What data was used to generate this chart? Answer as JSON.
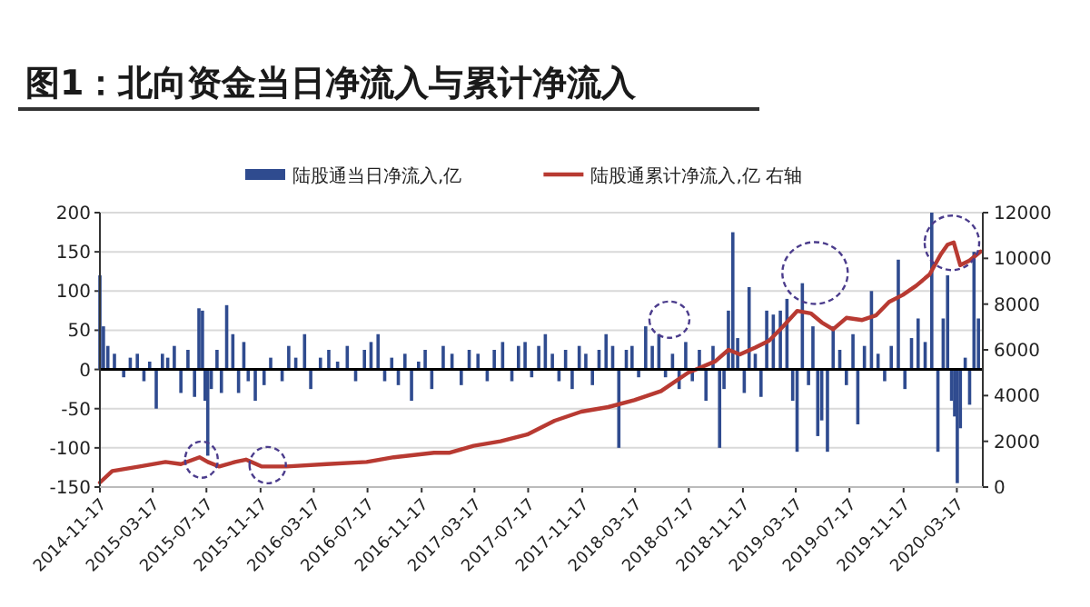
{
  "chart_data": {
    "type": "bar",
    "title": "图1：北向资金当日净流入与累计净流入",
    "xlim": [
      "2014-11-17",
      "2020-05-15"
    ],
    "xticks": [
      "2014-11-17",
      "2015-03-17",
      "2015-07-17",
      "2015-11-17",
      "2016-03-17",
      "2016-07-17",
      "2016-11-17",
      "2017-03-17",
      "2017-07-17",
      "2017-11-17",
      "2018-03-17",
      "2018-07-17",
      "2018-11-17",
      "2019-03-17",
      "2019-07-17",
      "2019-11-17",
      "2020-03-17"
    ],
    "ylim": [
      -150,
      200
    ],
    "yticks": [
      -150,
      -100,
      -50,
      0,
      50,
      100,
      150,
      200
    ],
    "y2lim": [
      0,
      12000
    ],
    "y2ticks": [
      0,
      2000,
      4000,
      6000,
      8000,
      10000,
      12000
    ],
    "grid": "y",
    "legend": "top",
    "series": [
      {
        "name": "陆股通当日净流入,亿",
        "color": "#2f4b8f",
        "x": [
          "2014-11-17",
          "2014-11-25",
          "2014-12-05",
          "2014-12-20",
          "2015-01-10",
          "2015-01-25",
          "2015-02-10",
          "2015-02-25",
          "2015-03-10",
          "2015-03-25",
          "2015-04-08",
          "2015-04-20",
          "2015-05-05",
          "2015-05-20",
          "2015-06-05",
          "2015-06-20",
          "2015-06-30",
          "2015-07-08",
          "2015-07-14",
          "2015-07-20",
          "2015-07-28",
          "2015-08-10",
          "2015-08-20",
          "2015-09-01",
          "2015-09-15",
          "2015-09-28",
          "2015-10-10",
          "2015-10-20",
          "2015-11-05",
          "2015-11-25",
          "2015-12-10",
          "2016-01-05",
          "2016-01-20",
          "2016-02-05",
          "2016-02-25",
          "2016-03-10",
          "2016-04-01",
          "2016-04-20",
          "2016-05-10",
          "2016-06-01",
          "2016-06-20",
          "2016-07-10",
          "2016-07-25",
          "2016-08-10",
          "2016-08-25",
          "2016-09-10",
          "2016-09-25",
          "2016-10-10",
          "2016-10-25",
          "2016-11-10",
          "2016-11-25",
          "2016-12-10",
          "2017-01-05",
          "2017-01-25",
          "2017-02-15",
          "2017-03-05",
          "2017-03-25",
          "2017-04-15",
          "2017-05-01",
          "2017-05-20",
          "2017-06-10",
          "2017-06-25",
          "2017-07-10",
          "2017-07-25",
          "2017-08-10",
          "2017-08-25",
          "2017-09-10",
          "2017-09-25",
          "2017-10-10",
          "2017-10-25",
          "2017-11-10",
          "2017-11-25",
          "2017-12-10",
          "2017-12-25",
          "2018-01-10",
          "2018-01-25",
          "2018-02-08",
          "2018-02-25",
          "2018-03-10",
          "2018-03-25",
          "2018-04-10",
          "2018-04-25",
          "2018-05-10",
          "2018-05-25",
          "2018-06-10",
          "2018-06-25",
          "2018-07-10",
          "2018-07-25",
          "2018-08-10",
          "2018-08-25",
          "2018-09-10",
          "2018-09-25",
          "2018-10-05",
          "2018-10-15",
          "2018-10-25",
          "2018-11-05",
          "2018-11-20",
          "2018-12-01",
          "2018-12-15",
          "2018-12-28",
          "2019-01-10",
          "2019-01-25",
          "2019-02-10",
          "2019-02-25",
          "2019-03-10",
          "2019-03-20",
          "2019-04-01",
          "2019-04-15",
          "2019-04-25",
          "2019-05-06",
          "2019-05-15",
          "2019-05-28",
          "2019-06-10",
          "2019-06-25",
          "2019-07-10",
          "2019-07-25",
          "2019-08-05",
          "2019-08-20",
          "2019-09-05",
          "2019-09-20",
          "2019-10-05",
          "2019-10-20",
          "2019-11-05",
          "2019-11-20",
          "2019-12-05",
          "2019-12-20",
          "2020-01-05",
          "2020-01-20",
          "2020-02-03",
          "2020-02-15",
          "2020-02-25",
          "2020-03-05",
          "2020-03-12",
          "2020-03-18",
          "2020-03-25",
          "2020-04-05",
          "2020-04-15",
          "2020-04-25",
          "2020-05-05"
        ],
        "values": [
          120,
          55,
          30,
          20,
          -10,
          15,
          20,
          -15,
          10,
          -50,
          20,
          15,
          30,
          -30,
          25,
          -35,
          78,
          75,
          -40,
          -110,
          -25,
          25,
          -30,
          82,
          45,
          -30,
          35,
          -15,
          -40,
          -20,
          15,
          -15,
          30,
          15,
          45,
          -25,
          15,
          25,
          10,
          30,
          -15,
          25,
          35,
          45,
          -15,
          15,
          -20,
          20,
          -40,
          10,
          25,
          -25,
          30,
          20,
          -20,
          25,
          20,
          -15,
          25,
          35,
          -15,
          30,
          35,
          -10,
          30,
          45,
          20,
          -15,
          25,
          -25,
          30,
          20,
          -20,
          25,
          45,
          30,
          -100,
          25,
          30,
          -10,
          55,
          30,
          45,
          -10,
          20,
          -25,
          35,
          -15,
          25,
          -40,
          30,
          -100,
          -25,
          75,
          175,
          40,
          -30,
          105,
          20,
          -35,
          75,
          70,
          75,
          90,
          -40,
          -105,
          110,
          -20,
          55,
          -85,
          -65,
          -105,
          55,
          25,
          -20,
          45,
          -70,
          30,
          100,
          20,
          -15,
          30,
          140,
          -25,
          40,
          65,
          35,
          200,
          -105,
          65,
          120,
          -40,
          -60,
          -145,
          -75,
          15,
          -45,
          150,
          65
        ]
      },
      {
        "name": "陆股通累计净流入,亿 右轴",
        "type": "line",
        "axis": "y2",
        "color": "#b83a32",
        "x": [
          "2014-11-17",
          "2014-12-15",
          "2015-02-15",
          "2015-04-15",
          "2015-05-20",
          "2015-07-01",
          "2015-07-20",
          "2015-08-15",
          "2015-09-20",
          "2015-10-15",
          "2015-11-20",
          "2016-01-15",
          "2016-04-15",
          "2016-07-15",
          "2016-09-15",
          "2016-12-15",
          "2017-01-20",
          "2017-03-15",
          "2017-05-15",
          "2017-07-15",
          "2017-09-15",
          "2017-11-15",
          "2018-01-15",
          "2018-03-15",
          "2018-05-15",
          "2018-07-15",
          "2018-09-15",
          "2018-10-15",
          "2018-11-10",
          "2018-12-15",
          "2019-01-15",
          "2019-02-15",
          "2019-03-20",
          "2019-04-20",
          "2019-05-15",
          "2019-06-10",
          "2019-07-10",
          "2019-08-15",
          "2019-09-15",
          "2019-10-15",
          "2019-11-15",
          "2019-12-15",
          "2020-01-15",
          "2020-02-10",
          "2020-02-25",
          "2020-03-10",
          "2020-03-25",
          "2020-04-15",
          "2020-05-10"
        ],
        "values": [
          200,
          700,
          900,
          1100,
          1000,
          1300,
          1100,
          900,
          1100,
          1200,
          900,
          900,
          1000,
          1100,
          1300,
          1500,
          1500,
          1800,
          2000,
          2300,
          2900,
          3300,
          3500,
          3800,
          4200,
          5000,
          5500,
          6000,
          5800,
          6100,
          6400,
          7000,
          7700,
          7600,
          7200,
          6900,
          7400,
          7300,
          7500,
          8100,
          8400,
          8800,
          9300,
          10200,
          10600,
          10700,
          9700,
          9900,
          10300
        ]
      }
    ]
  }
}
